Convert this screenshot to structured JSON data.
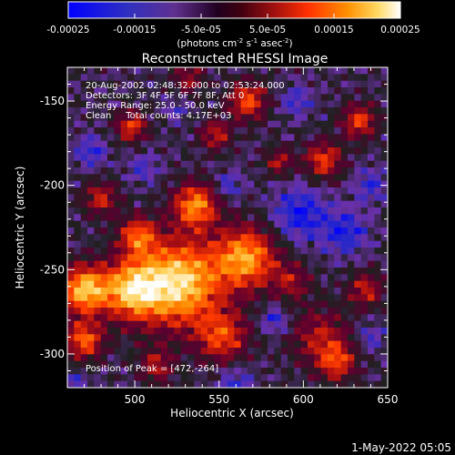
{
  "chart_data": {
    "type": "heatmap",
    "title": "Reconstructed RHESSI Image",
    "xlabel": "Heliocentric X (arcsec)",
    "ylabel": "Heliocentric Y (arcsec)",
    "xlim": [
      460,
      650
    ],
    "ylim": [
      -320,
      -130
    ],
    "x_ticks": [
      500,
      550,
      600,
      650
    ],
    "y_ticks": [
      -150,
      -200,
      -250,
      -300
    ],
    "colorbar": {
      "min": -0.00025,
      "max": 0.00025,
      "ticks": [
        "-0.00025",
        "-0.00015",
        "-5.0e-05",
        "5.0e-05",
        "0.00015",
        "0.00025"
      ],
      "tick_values": [
        -0.00025,
        -0.00015,
        -5e-05,
        5e-05,
        0.00015,
        0.00025
      ],
      "label_prefix": "(photons cm",
      "label_sup1": "-2",
      "label_mid1": " s",
      "label_sup2": "-1",
      "label_mid2": " asec",
      "label_sup3": "-2",
      "label_suffix": ")"
    },
    "annotations": [
      "20-Aug-2002 02:48:32.000 to 02:53:24.000",
      "Detectors: 3F 4F 5F 6F 7F 8F, Att 0",
      "Energy Range: 25.0 - 50.0 keV",
      "Clean     Total counts: 4.17E+03"
    ],
    "peak_text": "Position of Peak = [472,-264]",
    "peak_position": [
      472,
      -264
    ],
    "colors": {
      "colormap": [
        "#0000ff",
        "#2828c8",
        "#6a30a8",
        "#202020",
        "#5a0030",
        "#b01010",
        "#ff3c00",
        "#ff8c00",
        "#ffd25a",
        "#ffffff"
      ]
    }
  },
  "footer_timestamp": "1-May-2022 05:05"
}
